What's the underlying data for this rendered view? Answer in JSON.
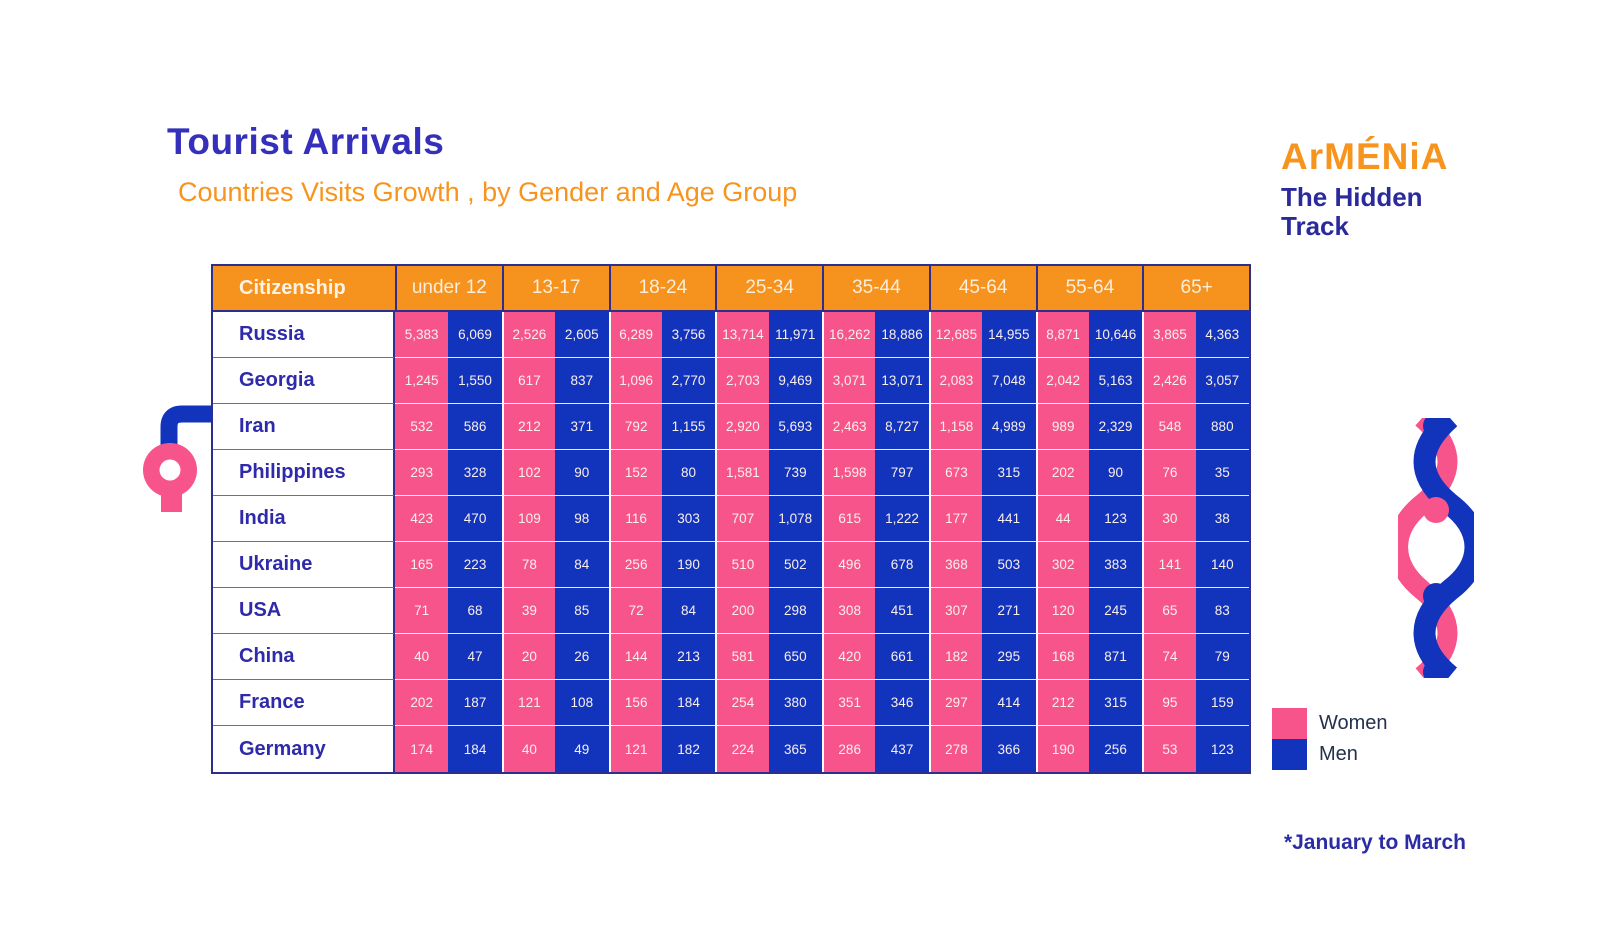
{
  "header": {
    "title": "Tourist Arrivals",
    "subtitle": "Countries Visits Growth , by Gender and Age Group"
  },
  "logo": {
    "wordmark": "ArMÉNiA",
    "tagline_line1": "The Hidden",
    "tagline_line2": "Track"
  },
  "legend": {
    "items": [
      {
        "label": "Women",
        "color": "#F8548C"
      },
      {
        "label": "Men",
        "color": "#1233BC"
      }
    ]
  },
  "footnote": "*January to March",
  "colors": {
    "orange": "#F6921E",
    "pink": "#F8548C",
    "blue": "#1233BC",
    "indigo": "#2F2DA8"
  },
  "chart_data": {
    "type": "table",
    "title": "Tourist Arrivals",
    "subtitle": "Countries Visits Growth , by Gender and Age Group",
    "row_header_label": "Citizenship",
    "age_groups": [
      "under 12",
      "13-17",
      "18-24",
      "25-34",
      "35-44",
      "45-64",
      "55-64",
      "65+"
    ],
    "genders": [
      "Women",
      "Men"
    ],
    "rows": [
      {
        "country": "Russia",
        "women": [
          5383,
          2526,
          6289,
          13714,
          16262,
          12685,
          8871,
          3865
        ],
        "men": [
          6069,
          2605,
          3756,
          11971,
          18886,
          14955,
          10646,
          4363
        ]
      },
      {
        "country": "Georgia",
        "women": [
          1245,
          617,
          1096,
          2703,
          3071,
          2083,
          2042,
          2426
        ],
        "men": [
          1550,
          837,
          2770,
          9469,
          13071,
          7048,
          5163,
          3057
        ]
      },
      {
        "country": "Iran",
        "women": [
          532,
          212,
          792,
          2920,
          2463,
          1158,
          989,
          548
        ],
        "men": [
          586,
          371,
          1155,
          5693,
          8727,
          4989,
          2329,
          880
        ]
      },
      {
        "country": "Philippines",
        "women": [
          293,
          102,
          152,
          1581,
          1598,
          673,
          202,
          76
        ],
        "men": [
          328,
          90,
          80,
          739,
          797,
          315,
          90,
          35
        ]
      },
      {
        "country": "India",
        "women": [
          423,
          109,
          116,
          707,
          615,
          177,
          44,
          30
        ],
        "men": [
          470,
          98,
          303,
          1078,
          1222,
          441,
          123,
          38
        ]
      },
      {
        "country": "Ukraine",
        "women": [
          165,
          78,
          256,
          510,
          496,
          368,
          302,
          141
        ],
        "men": [
          223,
          84,
          190,
          502,
          678,
          503,
          383,
          140
        ]
      },
      {
        "country": "USA",
        "women": [
          71,
          39,
          72,
          200,
          308,
          307,
          120,
          65
        ],
        "men": [
          68,
          85,
          84,
          298,
          451,
          271,
          245,
          83
        ]
      },
      {
        "country": "China",
        "women": [
          40,
          20,
          144,
          581,
          420,
          182,
          168,
          74
        ],
        "men": [
          47,
          26,
          213,
          650,
          661,
          295,
          871,
          79
        ]
      },
      {
        "country": "France",
        "women": [
          202,
          121,
          156,
          254,
          351,
          297,
          212,
          95
        ],
        "men": [
          187,
          108,
          184,
          380,
          346,
          414,
          315,
          159
        ]
      },
      {
        "country": "Germany",
        "women": [
          174,
          40,
          121,
          224,
          286,
          278,
          190,
          53
        ],
        "men": [
          184,
          49,
          182,
          365,
          437,
          366,
          256,
          123
        ]
      }
    ],
    "footnote": "*January to March"
  }
}
